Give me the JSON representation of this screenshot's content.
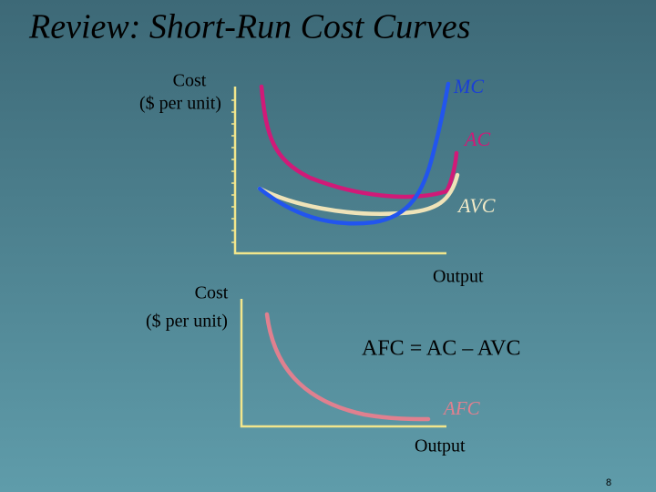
{
  "title": "Review:  Short-Run Cost Curves",
  "top_graph": {
    "y_label": [
      "Cost",
      "($ per unit)"
    ],
    "x_label": "Output",
    "curves": [
      "MC",
      "AC",
      "AVC"
    ]
  },
  "bottom_graph": {
    "y_label": [
      "Cost",
      "($ per unit)"
    ],
    "x_label": "Output",
    "curves": [
      "AFC"
    ],
    "formula": "AFC = AC – AVC"
  },
  "page_number": "8"
}
